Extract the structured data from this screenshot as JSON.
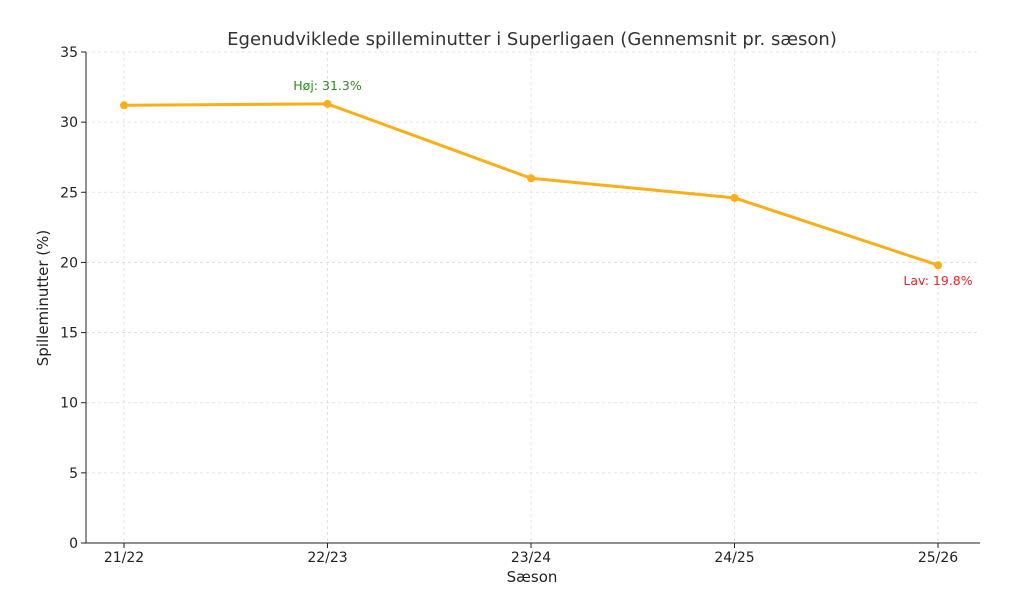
{
  "chart_data": {
    "type": "line",
    "title": "Egenudviklede spilleminutter i Superligaen (Gennemsnit pr. sæson)",
    "xlabel": "Sæson",
    "ylabel": "Spilleminutter (%)",
    "categories": [
      "21/22",
      "22/23",
      "23/24",
      "24/25",
      "25/26"
    ],
    "series": [
      {
        "values": [
          31.2,
          31.3,
          26.0,
          24.6,
          19.8
        ],
        "color": "#FBAE17"
      }
    ],
    "ylim": [
      0,
      35
    ],
    "yticks": [
      0,
      5,
      10,
      15,
      20,
      25,
      30,
      35
    ],
    "grid": true,
    "annotations": [
      {
        "text": "Høj: 31.3%",
        "category": "22/23",
        "value": 31.3,
        "color": "#2E8B22",
        "position": "above"
      },
      {
        "text": "Lav: 19.8%",
        "category": "25/26",
        "value": 19.8,
        "color": "#E8262A",
        "position": "below"
      }
    ]
  }
}
